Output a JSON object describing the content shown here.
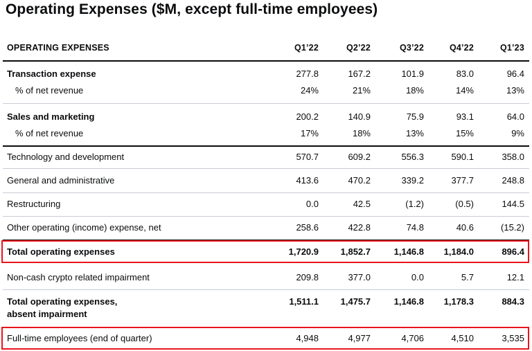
{
  "title": "Operating Expenses ($M, except full-time employees)",
  "header": {
    "label": "OPERATING EXPENSES",
    "quarters": [
      "Q1’22",
      "Q2’22",
      "Q3’22",
      "Q4’22",
      "Q1’23"
    ]
  },
  "rows": {
    "transaction": {
      "label": "Transaction expense",
      "values": [
        "277.8",
        "167.2",
        "101.9",
        "83.0",
        "96.4"
      ]
    },
    "transaction_pct": {
      "label": "% of net revenue",
      "values": [
        "24%",
        "21%",
        "18%",
        "14%",
        "13%"
      ]
    },
    "sales": {
      "label": "Sales and marketing",
      "values": [
        "200.2",
        "140.9",
        "75.9",
        "93.1",
        "64.0"
      ]
    },
    "sales_pct": {
      "label": "% of net revenue",
      "values": [
        "17%",
        "18%",
        "13%",
        "15%",
        "9%"
      ]
    },
    "tech": {
      "label": "Technology and development",
      "values": [
        "570.7",
        "609.2",
        "556.3",
        "590.1",
        "358.0"
      ]
    },
    "ga": {
      "label": "General and administrative",
      "values": [
        "413.6",
        "470.2",
        "339.2",
        "377.7",
        "248.8"
      ]
    },
    "restructuring": {
      "label": "Restructuring",
      "values": [
        "0.0",
        "42.5",
        "(1.2)",
        "(0.5)",
        "144.5"
      ]
    },
    "other": {
      "label": "Other operating (income) expense, net",
      "values": [
        "258.6",
        "422.8",
        "74.8",
        "40.6",
        "(15.2)"
      ]
    },
    "total": {
      "label": "Total operating expenses",
      "values": [
        "1,720.9",
        "1,852.7",
        "1,146.8",
        "1,184.0",
        "896.4"
      ]
    },
    "impairment": {
      "label": "Non-cash crypto related impairment",
      "values": [
        "209.8",
        "377.0",
        "0.0",
        "5.7",
        "12.1"
      ]
    },
    "total_absent": {
      "label_line1": "Total operating expenses,",
      "label_line2": "absent impairment",
      "values": [
        "1,511.1",
        "1,475.7",
        "1,146.8",
        "1,178.3",
        "884.3"
      ]
    },
    "employees": {
      "label": "Full-time employees (end of quarter)",
      "values": [
        "4,948",
        "4,977",
        "4,706",
        "4,510",
        "3,535"
      ]
    }
  },
  "highlight_color": "#e8141b"
}
